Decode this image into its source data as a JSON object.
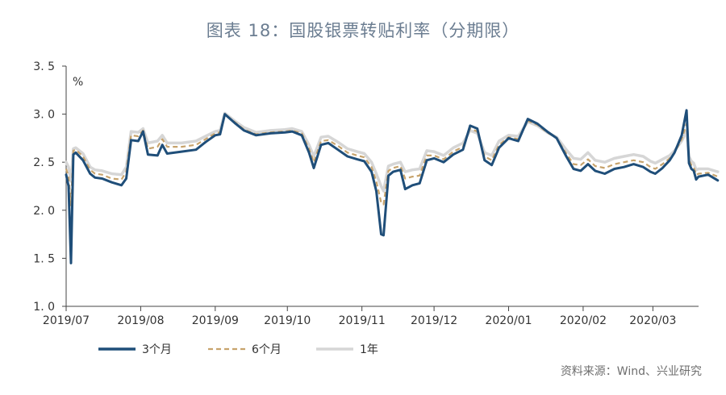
{
  "title": "图表 18：国股银票转贴利率（分期限）",
  "source": "资料来源：Wind、兴业研究",
  "chart_data": {
    "type": "line",
    "unit_label": "%",
    "ylim": [
      1.0,
      3.5
    ],
    "yticks": [
      "1. 0",
      "1. 5",
      "2. 0",
      "2. 5",
      "3. 0",
      "3. 5"
    ],
    "ytick_values": [
      1.0,
      1.5,
      2.0,
      2.5,
      3.0,
      3.5
    ],
    "x_range": [
      "2019-07-01",
      "2020-03-20"
    ],
    "xticks": [
      {
        "label": "2019/07",
        "date": "2019-07-01"
      },
      {
        "label": "2019/08",
        "date": "2019-08-01"
      },
      {
        "label": "2019/09",
        "date": "2019-09-01"
      },
      {
        "label": "2019/10",
        "date": "2019-10-01"
      },
      {
        "label": "2019/11",
        "date": "2019-11-01"
      },
      {
        "label": "2019/12",
        "date": "2019-12-01"
      },
      {
        "label": "2020/01",
        "date": "2020-01-01"
      },
      {
        "label": "2020/02",
        "date": "2020-02-01"
      },
      {
        "label": "2020/03",
        "date": "2020-03-01"
      }
    ],
    "legend_position": "bottom-left",
    "series": [
      {
        "name": "3个月",
        "color": "#1f4e79",
        "dash": "solid",
        "points": [
          [
            "2019-07-01",
            2.37
          ],
          [
            "2019-07-02",
            2.25
          ],
          [
            "2019-07-03",
            1.45
          ],
          [
            "2019-07-04",
            2.58
          ],
          [
            "2019-07-05",
            2.6
          ],
          [
            "2019-07-08",
            2.52
          ],
          [
            "2019-07-11",
            2.38
          ],
          [
            "2019-07-13",
            2.34
          ],
          [
            "2019-07-16",
            2.33
          ],
          [
            "2019-07-20",
            2.29
          ],
          [
            "2019-07-24",
            2.26
          ],
          [
            "2019-07-26",
            2.33
          ],
          [
            "2019-07-28",
            2.73
          ],
          [
            "2019-07-31",
            2.72
          ],
          [
            "2019-08-02",
            2.82
          ],
          [
            "2019-08-04",
            2.58
          ],
          [
            "2019-08-08",
            2.57
          ],
          [
            "2019-08-10",
            2.68
          ],
          [
            "2019-08-12",
            2.59
          ],
          [
            "2019-08-18",
            2.61
          ],
          [
            "2019-08-24",
            2.63
          ],
          [
            "2019-08-28",
            2.71
          ],
          [
            "2019-09-01",
            2.78
          ],
          [
            "2019-09-03",
            2.79
          ],
          [
            "2019-09-05",
            3.0
          ],
          [
            "2019-09-09",
            2.91
          ],
          [
            "2019-09-13",
            2.83
          ],
          [
            "2019-09-18",
            2.78
          ],
          [
            "2019-09-24",
            2.8
          ],
          [
            "2019-09-30",
            2.81
          ],
          [
            "2019-10-03",
            2.82
          ],
          [
            "2019-10-07",
            2.78
          ],
          [
            "2019-10-10",
            2.6
          ],
          [
            "2019-10-12",
            2.44
          ],
          [
            "2019-10-15",
            2.68
          ],
          [
            "2019-10-18",
            2.7
          ],
          [
            "2019-10-22",
            2.63
          ],
          [
            "2019-10-26",
            2.56
          ],
          [
            "2019-10-30",
            2.53
          ],
          [
            "2019-11-02",
            2.51
          ],
          [
            "2019-11-05",
            2.4
          ],
          [
            "2019-11-07",
            2.2
          ],
          [
            "2019-11-09",
            1.75
          ],
          [
            "2019-11-10",
            1.74
          ],
          [
            "2019-11-12",
            2.36
          ],
          [
            "2019-11-14",
            2.4
          ],
          [
            "2019-11-17",
            2.42
          ],
          [
            "2019-11-19",
            2.22
          ],
          [
            "2019-11-22",
            2.26
          ],
          [
            "2019-11-25",
            2.28
          ],
          [
            "2019-11-28",
            2.52
          ],
          [
            "2019-12-01",
            2.54
          ],
          [
            "2019-12-05",
            2.5
          ],
          [
            "2019-12-09",
            2.58
          ],
          [
            "2019-12-13",
            2.63
          ],
          [
            "2019-12-16",
            2.88
          ],
          [
            "2019-12-19",
            2.85
          ],
          [
            "2019-12-22",
            2.52
          ],
          [
            "2019-12-25",
            2.47
          ],
          [
            "2019-12-28",
            2.65
          ],
          [
            "2020-01-01",
            2.75
          ],
          [
            "2020-01-05",
            2.72
          ],
          [
            "2020-01-09",
            2.95
          ],
          [
            "2020-01-13",
            2.9
          ],
          [
            "2020-01-17",
            2.82
          ],
          [
            "2020-01-21",
            2.75
          ],
          [
            "2020-01-25",
            2.56
          ],
          [
            "2020-01-28",
            2.43
          ],
          [
            "2020-01-31",
            2.41
          ],
          [
            "2020-02-03",
            2.48
          ],
          [
            "2020-02-06",
            2.41
          ],
          [
            "2020-02-10",
            2.38
          ],
          [
            "2020-02-14",
            2.43
          ],
          [
            "2020-02-18",
            2.45
          ],
          [
            "2020-02-22",
            2.48
          ],
          [
            "2020-02-26",
            2.45
          ],
          [
            "2020-02-29",
            2.4
          ],
          [
            "2020-03-02",
            2.38
          ],
          [
            "2020-03-05",
            2.44
          ],
          [
            "2020-03-08",
            2.52
          ],
          [
            "2020-03-10",
            2.6
          ],
          [
            "2020-03-13",
            2.78
          ],
          [
            "2020-03-15",
            3.04
          ],
          [
            "2020-03-16",
            2.49
          ],
          [
            "2020-03-17",
            2.43
          ],
          [
            "2020-03-18",
            2.41
          ],
          [
            "2020-03-19",
            2.32
          ],
          [
            "2020-03-20",
            2.35
          ],
          [
            "2020-03-24",
            2.37
          ],
          [
            "2020-03-28",
            2.31
          ]
        ]
      },
      {
        "name": "6个月",
        "color": "#c7a36c",
        "dash": "dashed",
        "points": [
          [
            "2019-07-01",
            2.43
          ],
          [
            "2019-07-02",
            2.35
          ],
          [
            "2019-07-03",
            2.05
          ],
          [
            "2019-07-04",
            2.62
          ],
          [
            "2019-07-05",
            2.63
          ],
          [
            "2019-07-08",
            2.56
          ],
          [
            "2019-07-11",
            2.42
          ],
          [
            "2019-07-13",
            2.38
          ],
          [
            "2019-07-16",
            2.37
          ],
          [
            "2019-07-20",
            2.33
          ],
          [
            "2019-07-24",
            2.32
          ],
          [
            "2019-07-26",
            2.4
          ],
          [
            "2019-07-28",
            2.78
          ],
          [
            "2019-07-31",
            2.77
          ],
          [
            "2019-08-02",
            2.83
          ],
          [
            "2019-08-04",
            2.64
          ],
          [
            "2019-08-08",
            2.66
          ],
          [
            "2019-08-10",
            2.74
          ],
          [
            "2019-08-12",
            2.66
          ],
          [
            "2019-08-18",
            2.66
          ],
          [
            "2019-08-24",
            2.68
          ],
          [
            "2019-08-28",
            2.74
          ],
          [
            "2019-09-01",
            2.8
          ],
          [
            "2019-09-03",
            2.81
          ],
          [
            "2019-09-05",
            3.0
          ],
          [
            "2019-09-09",
            2.92
          ],
          [
            "2019-09-13",
            2.84
          ],
          [
            "2019-09-18",
            2.79
          ],
          [
            "2019-09-24",
            2.81
          ],
          [
            "2019-09-30",
            2.82
          ],
          [
            "2019-10-03",
            2.83
          ],
          [
            "2019-10-07",
            2.8
          ],
          [
            "2019-10-10",
            2.64
          ],
          [
            "2019-10-12",
            2.5
          ],
          [
            "2019-10-15",
            2.72
          ],
          [
            "2019-10-18",
            2.73
          ],
          [
            "2019-10-22",
            2.67
          ],
          [
            "2019-10-26",
            2.6
          ],
          [
            "2019-10-30",
            2.57
          ],
          [
            "2019-11-02",
            2.55
          ],
          [
            "2019-11-05",
            2.45
          ],
          [
            "2019-11-07",
            2.3
          ],
          [
            "2019-11-09",
            2.08
          ],
          [
            "2019-11-10",
            2.06
          ],
          [
            "2019-11-12",
            2.41
          ],
          [
            "2019-11-14",
            2.44
          ],
          [
            "2019-11-17",
            2.46
          ],
          [
            "2019-11-19",
            2.33
          ],
          [
            "2019-11-22",
            2.35
          ],
          [
            "2019-11-25",
            2.36
          ],
          [
            "2019-11-28",
            2.57
          ],
          [
            "2019-12-01",
            2.57
          ],
          [
            "2019-12-05",
            2.53
          ],
          [
            "2019-12-09",
            2.61
          ],
          [
            "2019-12-13",
            2.66
          ],
          [
            "2019-12-16",
            2.85
          ],
          [
            "2019-12-19",
            2.82
          ],
          [
            "2019-12-22",
            2.56
          ],
          [
            "2019-12-25",
            2.52
          ],
          [
            "2019-12-28",
            2.68
          ],
          [
            "2020-01-01",
            2.76
          ],
          [
            "2020-01-05",
            2.74
          ],
          [
            "2020-01-09",
            2.93
          ],
          [
            "2020-01-13",
            2.89
          ],
          [
            "2020-01-17",
            2.81
          ],
          [
            "2020-01-21",
            2.75
          ],
          [
            "2020-01-25",
            2.59
          ],
          [
            "2020-01-28",
            2.48
          ],
          [
            "2020-01-31",
            2.47
          ],
          [
            "2020-02-03",
            2.53
          ],
          [
            "2020-02-06",
            2.46
          ],
          [
            "2020-02-10",
            2.44
          ],
          [
            "2020-02-14",
            2.48
          ],
          [
            "2020-02-18",
            2.5
          ],
          [
            "2020-02-22",
            2.52
          ],
          [
            "2020-02-26",
            2.5
          ],
          [
            "2020-02-29",
            2.45
          ],
          [
            "2020-03-02",
            2.43
          ],
          [
            "2020-03-05",
            2.48
          ],
          [
            "2020-03-08",
            2.54
          ],
          [
            "2020-03-10",
            2.6
          ],
          [
            "2020-03-13",
            2.74
          ],
          [
            "2020-03-15",
            2.9
          ],
          [
            "2020-03-16",
            2.52
          ],
          [
            "2020-03-17",
            2.47
          ],
          [
            "2020-03-18",
            2.45
          ],
          [
            "2020-03-19",
            2.37
          ],
          [
            "2020-03-20",
            2.38
          ],
          [
            "2020-03-24",
            2.39
          ],
          [
            "2020-03-28",
            2.35
          ]
        ]
      },
      {
        "name": "1年",
        "color": "#d6d6d6",
        "dash": "solid",
        "points": [
          [
            "2019-07-01",
            2.5
          ],
          [
            "2019-07-02",
            2.45
          ],
          [
            "2019-07-03",
            2.3
          ],
          [
            "2019-07-04",
            2.64
          ],
          [
            "2019-07-05",
            2.65
          ],
          [
            "2019-07-08",
            2.59
          ],
          [
            "2019-07-11",
            2.45
          ],
          [
            "2019-07-13",
            2.42
          ],
          [
            "2019-07-16",
            2.41
          ],
          [
            "2019-07-20",
            2.38
          ],
          [
            "2019-07-24",
            2.37
          ],
          [
            "2019-07-26",
            2.45
          ],
          [
            "2019-07-28",
            2.82
          ],
          [
            "2019-07-31",
            2.81
          ],
          [
            "2019-08-02",
            2.85
          ],
          [
            "2019-08-04",
            2.7
          ],
          [
            "2019-08-08",
            2.72
          ],
          [
            "2019-08-10",
            2.78
          ],
          [
            "2019-08-12",
            2.7
          ],
          [
            "2019-08-18",
            2.7
          ],
          [
            "2019-08-24",
            2.72
          ],
          [
            "2019-08-28",
            2.77
          ],
          [
            "2019-09-01",
            2.82
          ],
          [
            "2019-09-03",
            2.83
          ],
          [
            "2019-09-05",
            3.01
          ],
          [
            "2019-09-09",
            2.93
          ],
          [
            "2019-09-13",
            2.86
          ],
          [
            "2019-09-18",
            2.81
          ],
          [
            "2019-09-24",
            2.83
          ],
          [
            "2019-09-30",
            2.84
          ],
          [
            "2019-10-03",
            2.85
          ],
          [
            "2019-10-07",
            2.82
          ],
          [
            "2019-10-10",
            2.68
          ],
          [
            "2019-10-12",
            2.56
          ],
          [
            "2019-10-15",
            2.76
          ],
          [
            "2019-10-18",
            2.77
          ],
          [
            "2019-10-22",
            2.71
          ],
          [
            "2019-10-26",
            2.64
          ],
          [
            "2019-10-30",
            2.61
          ],
          [
            "2019-11-02",
            2.59
          ],
          [
            "2019-11-05",
            2.5
          ],
          [
            "2019-11-07",
            2.38
          ],
          [
            "2019-11-09",
            2.25
          ],
          [
            "2019-11-10",
            2.2
          ],
          [
            "2019-11-12",
            2.46
          ],
          [
            "2019-11-14",
            2.48
          ],
          [
            "2019-11-17",
            2.5
          ],
          [
            "2019-11-19",
            2.4
          ],
          [
            "2019-11-22",
            2.42
          ],
          [
            "2019-11-25",
            2.43
          ],
          [
            "2019-11-28",
            2.62
          ],
          [
            "2019-12-01",
            2.61
          ],
          [
            "2019-12-05",
            2.57
          ],
          [
            "2019-12-09",
            2.65
          ],
          [
            "2019-12-13",
            2.7
          ],
          [
            "2019-12-16",
            2.83
          ],
          [
            "2019-12-19",
            2.8
          ],
          [
            "2019-12-22",
            2.6
          ],
          [
            "2019-12-25",
            2.57
          ],
          [
            "2019-12-28",
            2.72
          ],
          [
            "2020-01-01",
            2.78
          ],
          [
            "2020-01-05",
            2.77
          ],
          [
            "2020-01-09",
            2.92
          ],
          [
            "2020-01-13",
            2.88
          ],
          [
            "2020-01-17",
            2.81
          ],
          [
            "2020-01-21",
            2.76
          ],
          [
            "2020-01-25",
            2.63
          ],
          [
            "2020-01-28",
            2.54
          ],
          [
            "2020-01-31",
            2.53
          ],
          [
            "2020-02-03",
            2.6
          ],
          [
            "2020-02-06",
            2.52
          ],
          [
            "2020-02-10",
            2.5
          ],
          [
            "2020-02-14",
            2.54
          ],
          [
            "2020-02-18",
            2.56
          ],
          [
            "2020-02-22",
            2.58
          ],
          [
            "2020-02-26",
            2.56
          ],
          [
            "2020-02-29",
            2.51
          ],
          [
            "2020-03-02",
            2.49
          ],
          [
            "2020-03-05",
            2.53
          ],
          [
            "2020-03-08",
            2.57
          ],
          [
            "2020-03-10",
            2.62
          ],
          [
            "2020-03-13",
            2.72
          ],
          [
            "2020-03-15",
            2.82
          ],
          [
            "2020-03-16",
            2.56
          ],
          [
            "2020-03-17",
            2.51
          ],
          [
            "2020-03-18",
            2.49
          ],
          [
            "2020-03-19",
            2.42
          ],
          [
            "2020-03-20",
            2.43
          ],
          [
            "2020-03-24",
            2.43
          ],
          [
            "2020-03-28",
            2.4
          ]
        ]
      }
    ]
  }
}
